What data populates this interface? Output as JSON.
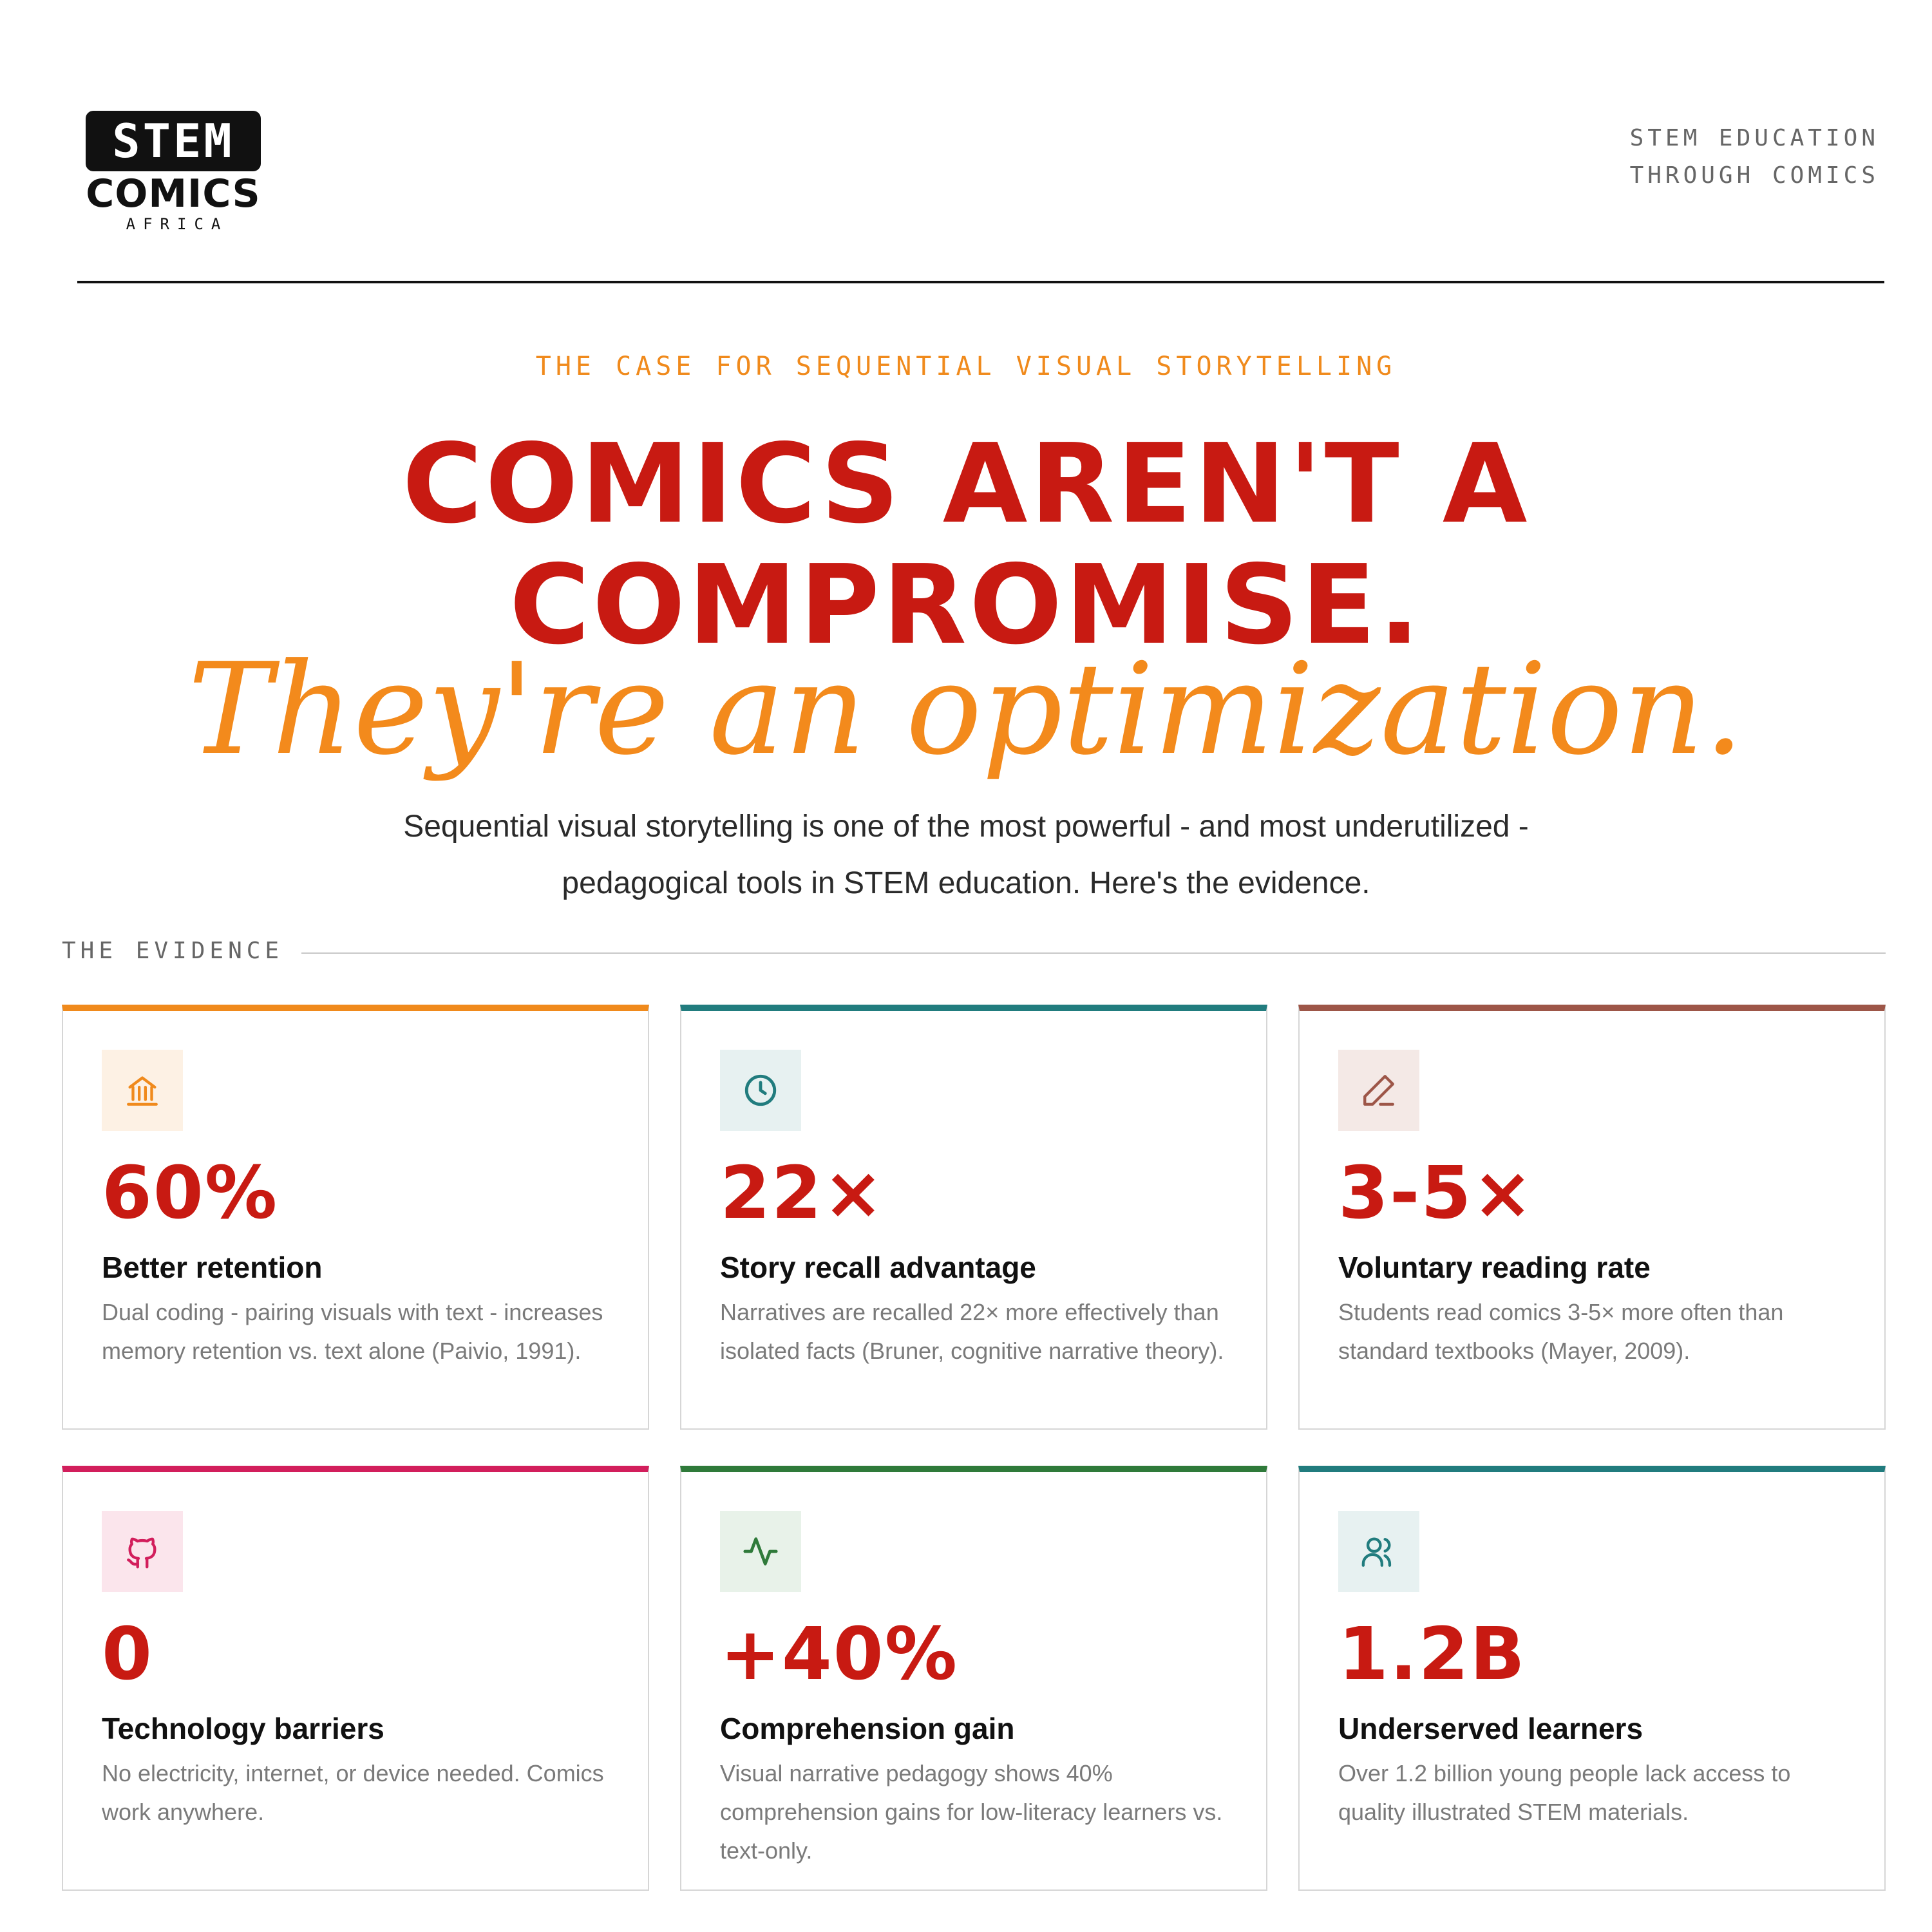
{
  "brand": {
    "logo_top": "STEM",
    "logo_mid": "COMICS",
    "logo_bottom": "AFRICA",
    "tagline_line1": "STEM EDUCATION",
    "tagline_line2": "THROUGH COMICS"
  },
  "hero": {
    "eyebrow": "THE CASE FOR SEQUENTIAL VISUAL STORYTELLING",
    "headline_line1": "COMICS AREN'T A",
    "headline_line2": "COMPROMISE.",
    "script_line": "They're an optimization.",
    "lede": "Sequential visual storytelling is one of the most powerful - and most underutilized - pedagogical tools in STEM education. Here's the evidence."
  },
  "evidence": {
    "label": "THE EVIDENCE",
    "cards": [
      {
        "icon": "landmark-icon",
        "accent": "#f08a1c",
        "stat": "60%",
        "title": "Better retention",
        "description": "Dual coding - pairing visuals with text - increases memory retention vs. text alone (Paivio, 1991)."
      },
      {
        "icon": "clock-icon",
        "accent": "#217c7e",
        "stat": "22×",
        "title": "Story recall advantage",
        "description": "Narratives are recalled 22× more effectively than isolated facts (Bruner, cognitive narrative theory)."
      },
      {
        "icon": "pencil-icon",
        "accent": "#9d5648",
        "stat": "3-5×",
        "title": "Voluntary reading rate",
        "description": "Students read comics 3-5× more often than standard textbooks (Mayer, 2009)."
      },
      {
        "icon": "github-icon",
        "accent": "#d21e5c",
        "stat": "0",
        "title": "Technology barriers",
        "description": "No electricity, internet, or device needed. Comics work anywhere."
      },
      {
        "icon": "activity-icon",
        "accent": "#2f7a3a",
        "stat": "+40%",
        "title": "Comprehension gain",
        "description": "Visual narrative pedagogy shows 40% comprehension gains for low-literacy learners vs. text-only."
      },
      {
        "icon": "users-icon",
        "accent": "#217c7e",
        "stat": "1.2B",
        "title": "Underserved learners",
        "description": "Over 1.2 billion young people lack access to quality illustrated STEM materials."
      }
    ]
  }
}
